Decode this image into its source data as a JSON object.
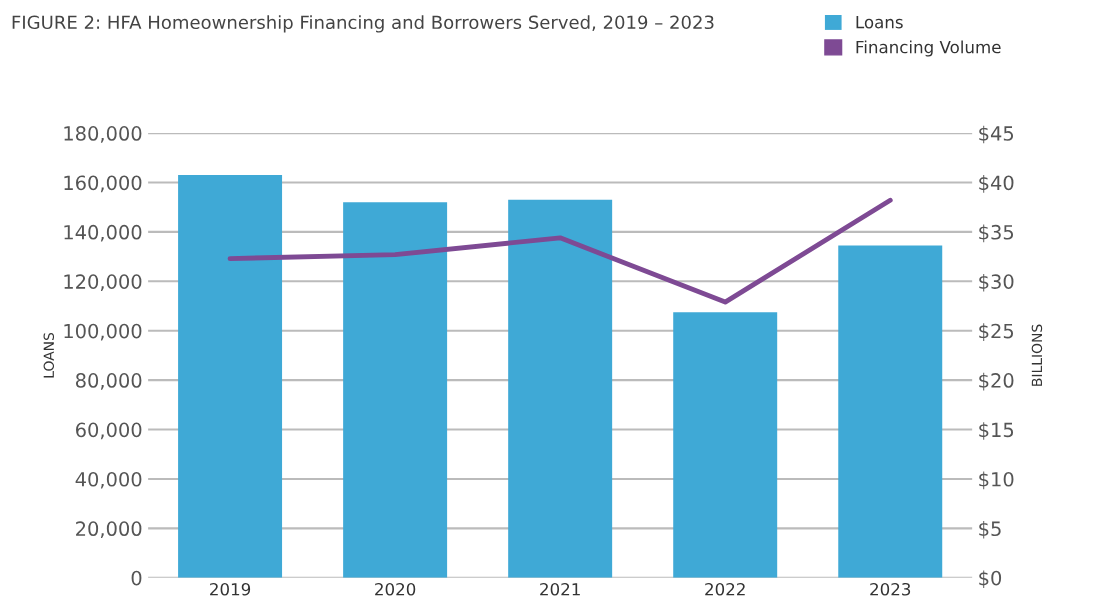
{
  "chart_data": {
    "type": "bar",
    "title": "FIGURE 2: HFA Homeownership Financing and Borrowers Served, 2019 – 2023",
    "ylabel": "LOANS",
    "y2label": "BILLIONS",
    "categories": [
      "2019",
      "2020",
      "2021",
      "2022",
      "2023"
    ],
    "series": [
      {
        "name": "Loans",
        "color": "#3fa9d6",
        "values": [
          163000,
          152000,
          153000,
          107500,
          134500
        ]
      },
      {
        "name": "Financing Volume",
        "type": "line",
        "axis": "y2",
        "color": "#7e4a94",
        "values": [
          32.3,
          32.7,
          34.4,
          27.9,
          38.2
        ]
      }
    ],
    "ylim": [
      0,
      180000
    ],
    "yticks": [
      {
        "value": 0,
        "label": "0"
      },
      {
        "value": 20000,
        "label": "20,000"
      },
      {
        "value": 40000,
        "label": "40,000"
      },
      {
        "value": 60000,
        "label": "60,000"
      },
      {
        "value": 80000,
        "label": "80,000"
      },
      {
        "value": 100000,
        "label": "100,000"
      },
      {
        "value": 120000,
        "label": "120,000"
      },
      {
        "value": 140000,
        "label": "140,000"
      },
      {
        "value": 160000,
        "label": "160,000"
      },
      {
        "value": 180000,
        "label": "180,000"
      }
    ],
    "y2lim": [
      0,
      45
    ],
    "y2ticks": [
      {
        "value": 0,
        "label": "$0"
      },
      {
        "value": 5,
        "label": "$5"
      },
      {
        "value": 10,
        "label": "$10"
      },
      {
        "value": 15,
        "label": "$15"
      },
      {
        "value": 20,
        "label": "$20"
      },
      {
        "value": 25,
        "label": "$25"
      },
      {
        "value": 30,
        "label": "$30"
      },
      {
        "value": 35,
        "label": "$35"
      },
      {
        "value": 40,
        "label": "$40"
      },
      {
        "value": 45,
        "label": "$45"
      }
    ],
    "grid": "y",
    "legend": "top right",
    "marker": "none",
    "line_style": "solid"
  }
}
